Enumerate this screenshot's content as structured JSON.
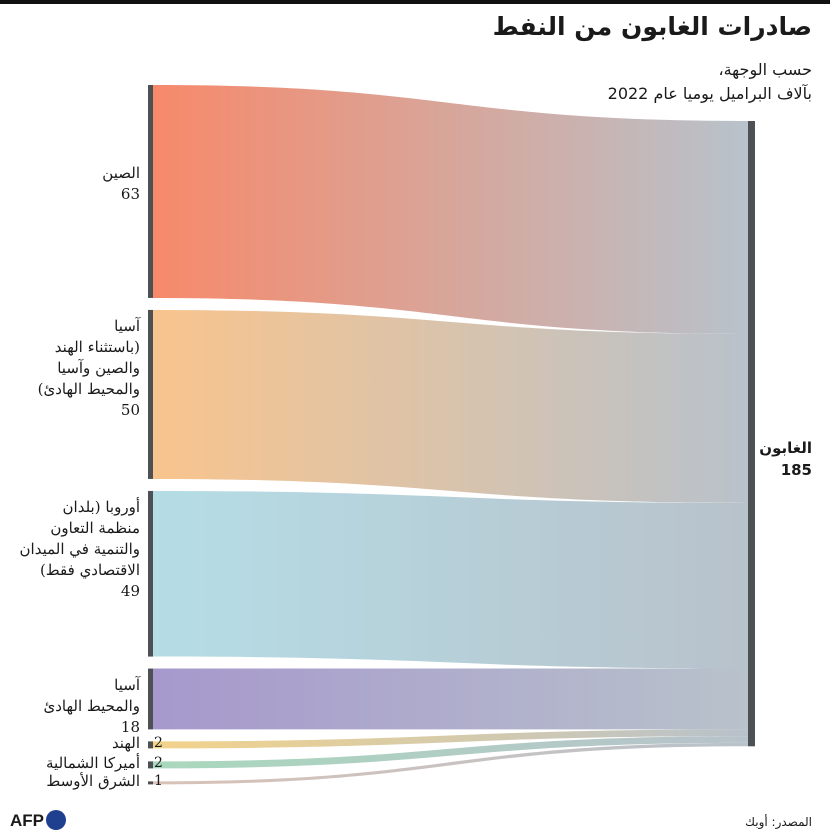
{
  "header": {
    "title": "صادرات الغابون من النفط",
    "subtitle_line1": "حسب الوجهة،",
    "subtitle_line2": "بآلاف البراميل يوميا عام 2022"
  },
  "footer": {
    "source": "المصدر: أوبك",
    "logo": "AFP"
  },
  "chart_data": {
    "type": "sankey",
    "target": {
      "name": "الغابون",
      "value": 185
    },
    "sources": [
      {
        "name_lines": [
          "الصين"
        ],
        "value": 63,
        "color": "#f7896a"
      },
      {
        "name_lines": [
          "آسيا",
          "(باستثناء الهند",
          "والصين وآسيا",
          "والمحيط الهادئ)"
        ],
        "value": 50,
        "color": "#f9c48d"
      },
      {
        "name_lines": [
          "أوروبا (بلدان",
          "منظمة التعاون",
          "والتنمية في الميدان",
          "الاقتصادي فقط)"
        ],
        "value": 49,
        "color": "#b5dde6"
      },
      {
        "name_lines": [
          "آسيا",
          "والمحيط الهادئ"
        ],
        "value": 18,
        "color": "#a698cc"
      },
      {
        "name_lines": [
          "الهند"
        ],
        "value": 2,
        "color": "#f3d38a"
      },
      {
        "name_lines": [
          "أميركا الشمالية"
        ],
        "value": 2,
        "color": "#a9d8bd"
      },
      {
        "name_lines": [
          "الشرق الأوسط"
        ],
        "value": 1,
        "color": "#d9c2b6"
      }
    ],
    "target_color": "#b8c2cb",
    "node_color": "#4d5153"
  }
}
